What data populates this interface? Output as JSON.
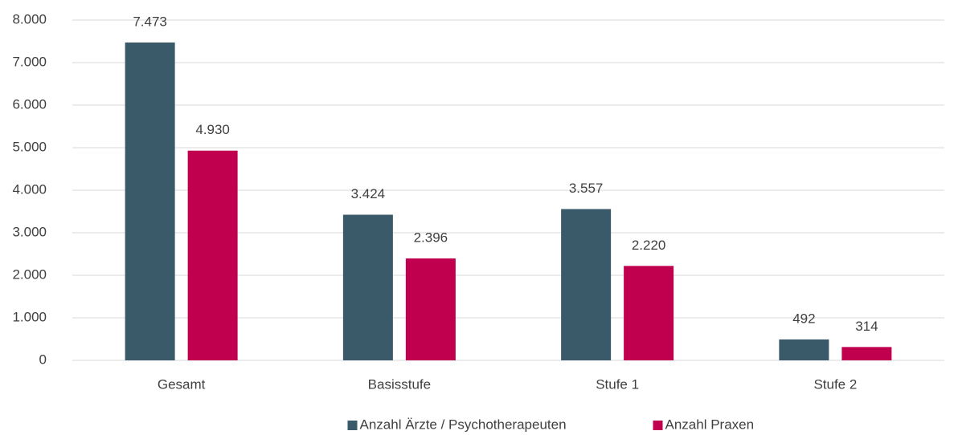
{
  "chart_data": {
    "type": "bar",
    "categories": [
      "Gesamt",
      "Basisstufe",
      "Stufe 1",
      "Stufe 2"
    ],
    "series": [
      {
        "name": "Anzahl Ärzte / Psychotherapeuten",
        "color": "#3a5a6a",
        "values": [
          7473,
          3424,
          3557,
          492
        ],
        "value_labels": [
          "7.473",
          "3.424",
          "3.557",
          "492"
        ]
      },
      {
        "name": "Anzahl Praxen",
        "color": "#c0004f",
        "values": [
          4930,
          2396,
          2220,
          314
        ],
        "value_labels": [
          "4.930",
          "2.396",
          "2.220",
          "314"
        ]
      }
    ],
    "ylim": [
      0,
      8000
    ],
    "yticks": [
      0,
      {
        "value": 1000,
        "label": "1.000"
      },
      {
        "value": 2000,
        "label": "2.000"
      },
      {
        "value": 3000,
        "label": "3.000"
      },
      {
        "value": 4000,
        "label": "4.000"
      },
      {
        "value": 5000,
        "label": "5.000"
      },
      {
        "value": 6000,
        "label": "6.000"
      },
      {
        "value": 7000,
        "label": "7.000"
      },
      {
        "value": 8000,
        "label": "8.000"
      }
    ],
    "grid": true,
    "legend": "bottom"
  }
}
